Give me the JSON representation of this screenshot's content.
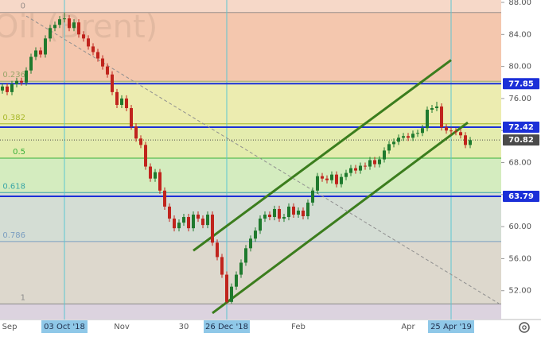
{
  "chart_data": {
    "type": "candlestick",
    "watermark": "Oil (Brent)",
    "categories": [
      "Sep",
      null,
      null,
      null,
      null,
      null,
      null,
      null,
      null,
      null,
      null,
      null,
      null,
      "03 Oct '18",
      null,
      null,
      null,
      null,
      null,
      null,
      null,
      null,
      null,
      null,
      null,
      "Nov",
      null,
      null,
      null,
      null,
      null,
      null,
      null,
      null,
      null,
      null,
      null,
      null,
      "30",
      null,
      null,
      null,
      null,
      null,
      null,
      null,
      null,
      "26 Dec '18",
      null,
      null,
      null,
      null,
      null,
      null,
      null,
      null,
      null,
      null,
      null,
      null,
      null,
      null,
      "Feb",
      null,
      null,
      null,
      null,
      null,
      null,
      null,
      null,
      null,
      null,
      null,
      null,
      null,
      null,
      null,
      null,
      null,
      null,
      null,
      null,
      null,
      null,
      "Apr",
      null,
      null,
      null,
      null,
      null,
      null,
      null,
      null,
      "25 Apr '19",
      null,
      null,
      null,
      null
    ],
    "open": [
      77.0,
      77.5,
      76.8,
      77.8,
      78.2,
      78.0,
      79.5,
      81.2,
      82.0,
      81.5,
      83.5,
      84.8,
      85.2,
      85.9,
      86.0,
      84.8,
      85.5,
      84.0,
      83.5,
      82.5,
      81.8,
      81.0,
      80.0,
      79.0,
      76.8,
      75.2,
      76.0,
      74.8,
      72.5,
      71.0,
      70.2,
      67.5,
      66.0,
      66.8,
      64.5,
      62.5,
      61.0,
      59.8,
      60.5,
      61.2,
      59.8,
      61.5,
      61.0,
      60.2,
      61.5,
      58.0,
      56.2,
      54.0,
      50.6,
      52.5,
      54.0,
      55.5,
      57.3,
      58.5,
      59.5,
      61.0,
      61.5,
      61.2,
      62.2,
      61.0,
      61.2,
      62.5,
      61.5,
      62.0,
      61.3,
      63.0,
      64.5,
      66.3,
      66.0,
      65.8,
      66.5,
      65.3,
      66.2,
      66.7,
      67.3,
      67.0,
      67.6,
      67.5,
      68.3,
      67.8,
      68.4,
      69.5,
      70.3,
      70.6,
      71.1,
      71.3,
      71.1,
      71.6,
      71.7,
      72.3,
      74.6,
      74.8,
      75.0,
      72.4,
      72.0,
      71.9,
      71.8,
      71.4,
      70.2
    ],
    "high": [
      77.9,
      77.9,
      78.2,
      78.6,
      78.6,
      79.9,
      81.6,
      82.4,
      82.4,
      83.9,
      85.2,
      85.6,
      86.3,
      86.74,
      86.4,
      85.9,
      85.9,
      84.4,
      83.9,
      82.9,
      82.2,
      81.4,
      80.4,
      79.4,
      77.2,
      76.4,
      76.4,
      75.2,
      72.9,
      71.4,
      70.6,
      67.9,
      67.2,
      67.2,
      64.9,
      62.9,
      61.4,
      60.9,
      61.6,
      61.6,
      61.9,
      61.9,
      61.4,
      61.9,
      61.9,
      58.4,
      56.6,
      54.4,
      52.9,
      54.4,
      55.9,
      57.7,
      58.9,
      59.9,
      61.4,
      61.9,
      61.9,
      62.6,
      62.6,
      61.6,
      62.9,
      62.9,
      62.4,
      62.4,
      63.4,
      64.9,
      66.7,
      66.7,
      66.4,
      66.9,
      66.9,
      66.6,
      67.1,
      67.7,
      67.7,
      68.0,
      68.0,
      68.7,
      68.7,
      68.8,
      69.9,
      70.7,
      71.0,
      71.5,
      71.7,
      71.7,
      72.0,
      72.1,
      72.7,
      75.0,
      75.2,
      75.6,
      75.4,
      72.8,
      72.4,
      72.3,
      72.2,
      71.8,
      71.2
    ],
    "low": [
      76.6,
      76.4,
      76.4,
      77.4,
      77.6,
      77.6,
      79.1,
      80.8,
      81.1,
      81.1,
      83.1,
      84.4,
      84.8,
      85.5,
      84.4,
      84.4,
      83.6,
      83.1,
      82.1,
      81.4,
      80.6,
      79.6,
      78.6,
      76.4,
      74.8,
      74.8,
      74.4,
      72.1,
      70.6,
      69.8,
      67.1,
      65.6,
      65.6,
      64.1,
      62.1,
      60.6,
      59.4,
      59.4,
      60.1,
      59.4,
      59.4,
      60.6,
      59.8,
      59.8,
      57.6,
      55.8,
      53.6,
      50.35,
      50.4,
      52.1,
      53.6,
      55.1,
      56.9,
      58.1,
      59.1,
      60.6,
      60.8,
      60.8,
      60.6,
      60.6,
      60.8,
      61.1,
      61.1,
      60.9,
      60.9,
      62.6,
      64.1,
      65.6,
      65.4,
      65.4,
      64.9,
      64.9,
      65.8,
      66.3,
      66.6,
      66.6,
      67.1,
      67.1,
      67.4,
      67.4,
      68.0,
      69.1,
      69.9,
      70.2,
      70.7,
      70.7,
      70.7,
      71.2,
      71.3,
      71.9,
      74.2,
      74.4,
      72.0,
      71.6,
      71.5,
      71.4,
      71.0,
      69.8,
      69.8
    ],
    "close": [
      77.5,
      76.8,
      77.8,
      78.2,
      78.0,
      79.5,
      81.2,
      82.0,
      81.5,
      83.5,
      84.8,
      85.2,
      85.9,
      86.0,
      84.8,
      85.5,
      84.0,
      83.5,
      82.5,
      81.8,
      81.0,
      80.0,
      79.0,
      76.8,
      75.2,
      76.0,
      74.8,
      72.5,
      71.0,
      70.2,
      67.5,
      66.0,
      66.8,
      64.5,
      62.5,
      61.0,
      59.8,
      60.5,
      61.2,
      59.8,
      61.5,
      61.0,
      60.2,
      61.5,
      58.0,
      56.2,
      54.0,
      50.6,
      52.5,
      54.0,
      55.5,
      57.3,
      58.5,
      59.5,
      61.0,
      61.5,
      61.2,
      62.2,
      61.0,
      61.2,
      62.5,
      61.5,
      62.0,
      61.3,
      63.0,
      64.5,
      66.3,
      66.0,
      65.8,
      66.5,
      65.3,
      66.2,
      66.7,
      67.3,
      67.0,
      67.6,
      67.5,
      68.3,
      67.8,
      68.4,
      69.5,
      70.3,
      70.6,
      71.1,
      71.3,
      71.1,
      71.6,
      71.7,
      72.3,
      74.6,
      74.8,
      75.0,
      72.4,
      72.0,
      71.9,
      71.8,
      71.4,
      70.2,
      70.8
    ],
    "up_color": "#1f7a2e",
    "down_color": "#c0241d",
    "ylim": [
      48.4,
      88.3
    ],
    "yticks": [
      {
        "value": 52,
        "label": "52.00"
      },
      {
        "value": 56,
        "label": "56.00"
      },
      {
        "value": 60,
        "label": "60.00"
      },
      {
        "value": 64,
        "label": "64.00"
      },
      {
        "value": 68,
        "label": "68.00"
      },
      {
        "value": 72,
        "label": "72.00"
      },
      {
        "value": 76,
        "label": "76.00"
      },
      {
        "value": 80,
        "label": "80.00"
      },
      {
        "value": 84,
        "label": "84.00"
      },
      {
        "value": 88,
        "label": "88.00"
      }
    ],
    "fibonacci": {
      "high": 86.74,
      "low": 50.35,
      "levels": [
        0,
        0.236,
        0.382,
        0.5,
        0.618,
        0.786,
        1
      ],
      "line_colors": [
        "#9a8f8a",
        "#9aa56a",
        "#a8b82a",
        "#39b03a",
        "#3aa6a6",
        "#7b9ec0",
        "#8a8a8a"
      ],
      "zone_colors": [
        "#f6d8c8",
        "#f4c7ae",
        "#ececb0",
        "#e4ecae",
        "#d4ecbf",
        "#d4ddd4",
        "#ddd8cd",
        "#dcd3df"
      ]
    },
    "hlines": [
      77.85,
      72.42,
      63.79
    ],
    "hline_color": "#1b2fd8",
    "last_price": 70.82,
    "last_price_color": "#4a4a4a",
    "vertical_lines": [
      "03 Oct '18",
      "26 Dec '18",
      "25 Apr '19"
    ],
    "vertical_line_color": "#5cc6d2",
    "trendlines": [
      {
        "points": [
          [
            40,
            57.0
          ],
          [
            94,
            80.8
          ]
        ],
        "color": "#3b7d1d",
        "dashed": false
      },
      {
        "points": [
          [
            44,
            49.2
          ],
          [
            97.5,
            73.0
          ]
        ],
        "color": "#3b7d1d",
        "dashed": false
      },
      {
        "points": [
          [
            5,
            86.3
          ],
          [
            104,
            50.4
          ]
        ],
        "color": "#8f8f8f",
        "dashed": true
      }
    ]
  }
}
